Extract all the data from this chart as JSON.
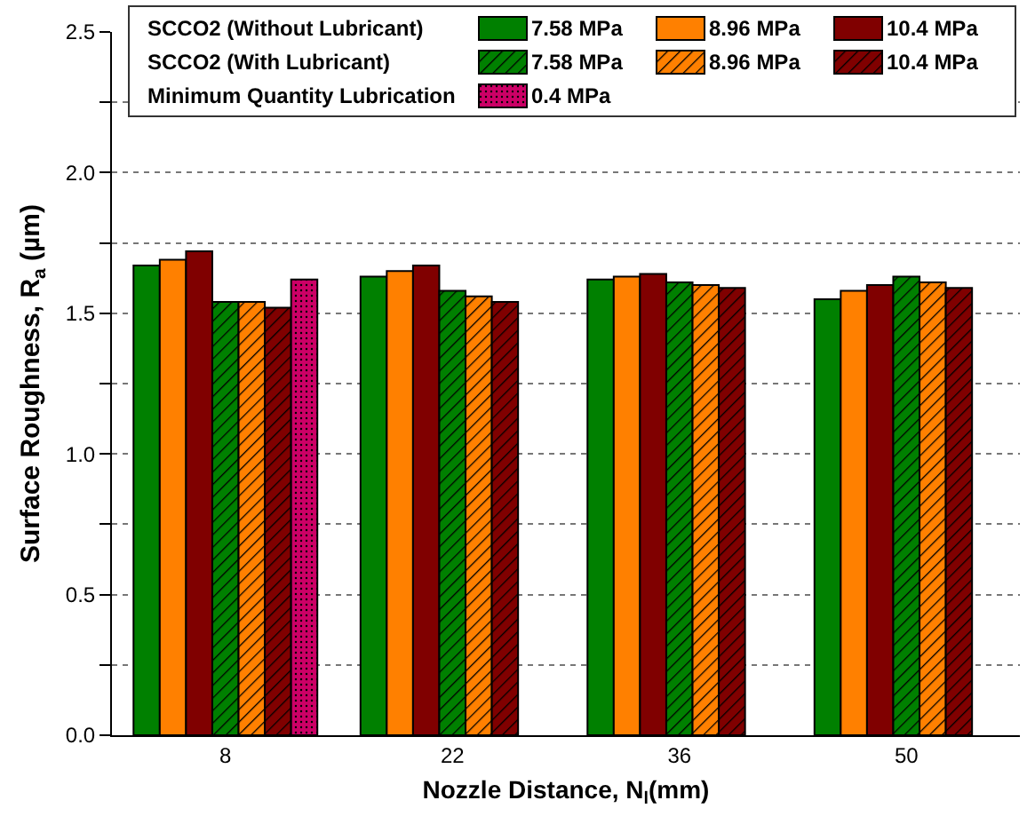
{
  "chart_data": {
    "type": "bar",
    "xlabel": "Nozzle Distance, N$_{l}$(mm)",
    "ylabel": "Surface Roughness, R$_{a}$ (µm)",
    "categories": [
      "8",
      "22",
      "36",
      "50"
    ],
    "annotations": [
      "SCCO2 (Without Lubricant)",
      "SCCO2 (With Lubricant)",
      "Minimum Quantity Lubrication"
    ],
    "series": [
      {
        "name": "7.58 MPa",
        "color": "#008000",
        "values": [
          1.67,
          1.63,
          1.62,
          1.55
        ]
      },
      {
        "name": "8.96 MPa",
        "color": "#ff8000",
        "values": [
          1.69,
          1.65,
          1.63,
          1.58
        ]
      },
      {
        "name": "10.4 MPa",
        "color": "#800000",
        "values": [
          1.72,
          1.67,
          1.64,
          1.6
        ]
      },
      {
        "name": "7.58 MPa",
        "color": "#008000",
        "values": [
          1.54,
          1.58,
          1.61,
          1.63
        ]
      },
      {
        "name": "8.96 MPa",
        "color": "#ff8000",
        "values": [
          1.54,
          1.56,
          1.6,
          1.61
        ]
      },
      {
        "name": "10.4 MPa",
        "color": "#800000",
        "values": [
          1.52,
          1.54,
          1.59,
          1.59
        ]
      },
      {
        "name": "0.4 MPa",
        "color": "#cc0066",
        "values": [
          1.62,
          null,
          null,
          null
        ]
      }
    ],
    "ylim": [
      0,
      2.5
    ],
    "yticks": [
      {
        "value": 0,
        "label": "0.0"
      },
      {
        "value": 0.25,
        "label": null
      },
      {
        "value": 0.5,
        "label": "0.5"
      },
      {
        "value": 0.75,
        "label": null
      },
      {
        "value": 1,
        "label": "1.0"
      },
      {
        "value": 1.25,
        "label": null
      },
      {
        "value": 1.5,
        "label": "1.5"
      },
      {
        "value": 1.75,
        "label": null
      },
      {
        "value": 2,
        "label": "2.0"
      },
      {
        "value": 2.25,
        "label": null
      },
      {
        "value": 2.5,
        "label": "2.5"
      }
    ],
    "grid": "y",
    "legend": "top"
  }
}
